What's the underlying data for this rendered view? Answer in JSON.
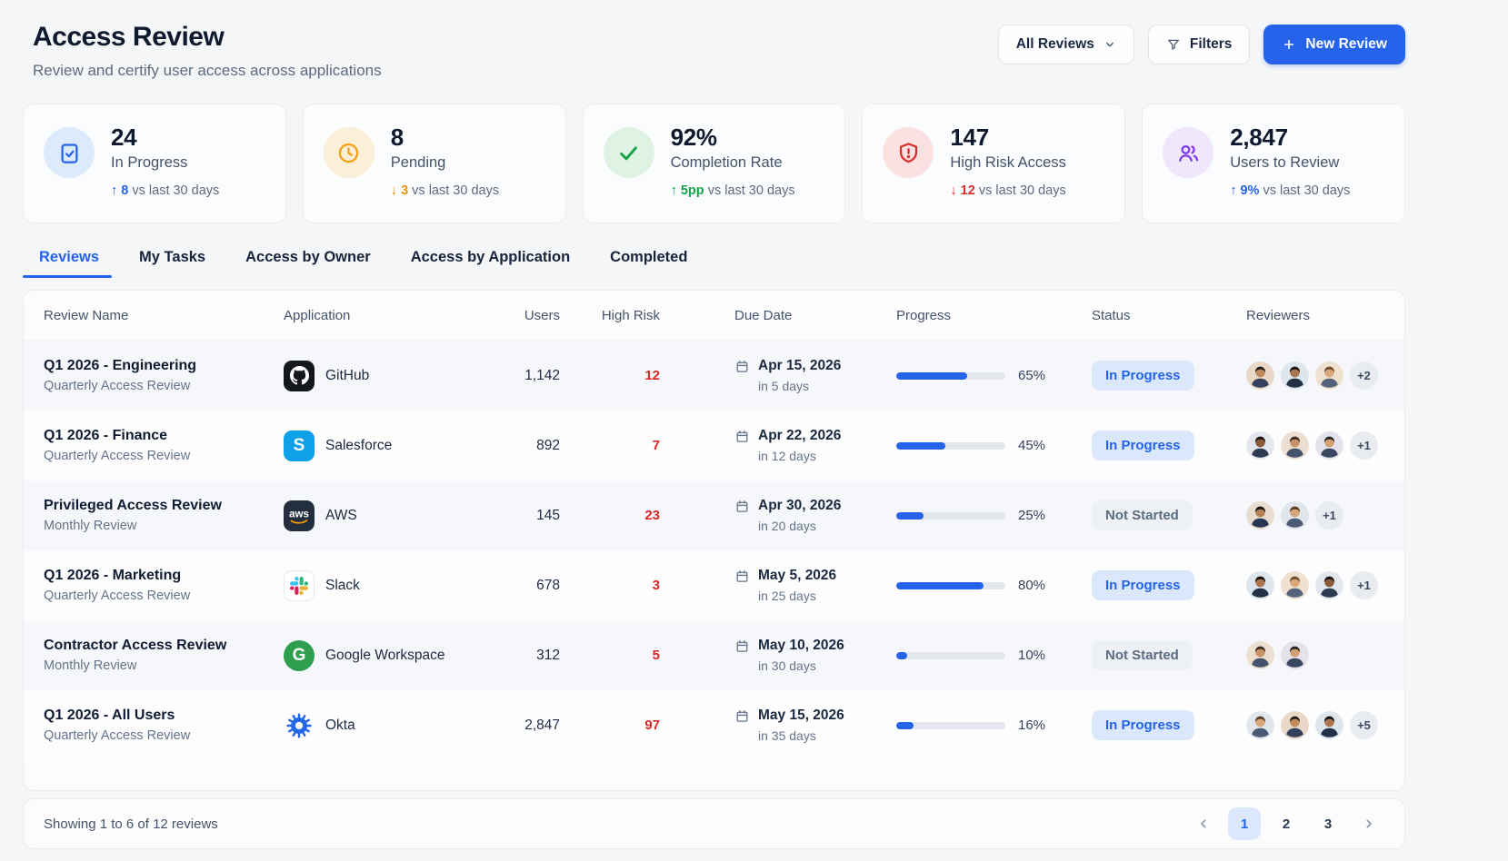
{
  "page": {
    "title": "Access Review",
    "subtitle": "Review and certify user access across applications"
  },
  "toolbar": {
    "scope_value": "All Reviews",
    "filters_label": "Filters",
    "new_review_label": "New Review"
  },
  "stats": [
    {
      "icon": "clipboard-check-icon",
      "icon_color": "#2563eb",
      "icon_bg": "#ddeafc",
      "value": "24",
      "label": "In Progress",
      "trend_dir": "up",
      "trend_value": "8",
      "trend_note": "vs last 30 days",
      "trend_color": "#2563eb"
    },
    {
      "icon": "clock-icon",
      "icon_color": "#f59f0a",
      "icon_bg": "#fcefd8",
      "value": "8",
      "label": "Pending",
      "trend_dir": "down",
      "trend_value": "3",
      "trend_note": "vs last 30 days",
      "trend_color": "#ee8b01"
    },
    {
      "icon": "check-icon",
      "icon_color": "#17a34a",
      "icon_bg": "#def3e3",
      "value": "92%",
      "label": "Completion Rate",
      "trend_dir": "up",
      "trend_value": "5pp",
      "trend_note": "vs last 30 days",
      "trend_color": "#17a34a"
    },
    {
      "icon": "shield-alert-icon",
      "icon_color": "#d92c2c",
      "icon_bg": "#fbe1e1",
      "value": "147",
      "label": "High Risk Access",
      "trend_dir": "down",
      "trend_value": "12",
      "trend_note": "vs last 30 days",
      "trend_color": "#d92c2c"
    },
    {
      "icon": "users-icon",
      "icon_color": "#7c3aed",
      "icon_bg": "#efe6fb",
      "value": "2,847",
      "label": "Users to Review",
      "trend_dir": "up",
      "trend_value": "9%",
      "trend_note": "vs last 30 days",
      "trend_color": "#2563eb"
    }
  ],
  "tabs": [
    {
      "label": "Reviews",
      "active": true
    },
    {
      "label": "My Tasks",
      "active": false
    },
    {
      "label": "Access by Owner",
      "active": false
    },
    {
      "label": "Access by Application",
      "active": false
    },
    {
      "label": "Completed",
      "active": false
    }
  ],
  "table": {
    "columns": [
      "Review Name",
      "Application",
      "Users",
      "High Risk",
      "Due Date",
      "Progress",
      "Status",
      "Reviewers"
    ],
    "progress_color": "#2563eb",
    "status_styles": {
      "In Progress": {
        "bg": "#dbe8fb",
        "color": "#2563eb"
      },
      "Not Started": {
        "bg": "#edf0f4",
        "color": "#5b6b80"
      }
    },
    "rows": [
      {
        "name": "Q1 2026 - Engineering",
        "cadence": "Quarterly Access Review",
        "app": "GitHub",
        "app_icon": "github-icon",
        "users": "1,142",
        "high_risk": "12",
        "due_date": "Apr 15, 2026",
        "due_in": "in 5 days",
        "progress_pct": 65,
        "progress_label": "65%",
        "status": "In Progress",
        "reviewer_count": 3,
        "reviewer_extra": "+2"
      },
      {
        "name": "Q1 2026 - Finance",
        "cadence": "Quarterly Access Review",
        "app": "Salesforce",
        "app_icon": "salesforce-icon",
        "users": "892",
        "high_risk": "7",
        "due_date": "Apr 22, 2026",
        "due_in": "in 12 days",
        "progress_pct": 45,
        "progress_label": "45%",
        "status": "In Progress",
        "reviewer_count": 3,
        "reviewer_extra": "+1"
      },
      {
        "name": "Privileged Access Review",
        "cadence": "Monthly Review",
        "app": "AWS",
        "app_icon": "aws-icon",
        "users": "145",
        "high_risk": "23",
        "due_date": "Apr 30, 2026",
        "due_in": "in 20 days",
        "progress_pct": 25,
        "progress_label": "25%",
        "status": "Not Started",
        "reviewer_count": 2,
        "reviewer_extra": "+1"
      },
      {
        "name": "Q1 2026 - Marketing",
        "cadence": "Quarterly Access Review",
        "app": "Slack",
        "app_icon": "slack-icon",
        "users": "678",
        "high_risk": "3",
        "due_date": "May 5, 2026",
        "due_in": "in 25 days",
        "progress_pct": 80,
        "progress_label": "80%",
        "status": "In Progress",
        "reviewer_count": 3,
        "reviewer_extra": "+1"
      },
      {
        "name": "Contractor Access Review",
        "cadence": "Monthly Review",
        "app": "Google Workspace",
        "app_icon": "google-workspace-icon",
        "users": "312",
        "high_risk": "5",
        "due_date": "May 10, 2026",
        "due_in": "in 30 days",
        "progress_pct": 10,
        "progress_label": "10%",
        "status": "Not Started",
        "reviewer_count": 2,
        "reviewer_extra": ""
      },
      {
        "name": "Q1 2026 - All Users",
        "cadence": "Quarterly Access Review",
        "app": "Okta",
        "app_icon": "okta-icon",
        "users": "2,847",
        "high_risk": "97",
        "due_date": "May 15, 2026",
        "due_in": "in 35 days",
        "progress_pct": 16,
        "progress_label": "16%",
        "status": "In Progress",
        "reviewer_count": 3,
        "reviewer_extra": "+5"
      }
    ]
  },
  "footer": {
    "summary": "Showing 1 to 6 of 12 reviews",
    "pages": [
      "1",
      "2",
      "3"
    ],
    "active_page": "1"
  }
}
